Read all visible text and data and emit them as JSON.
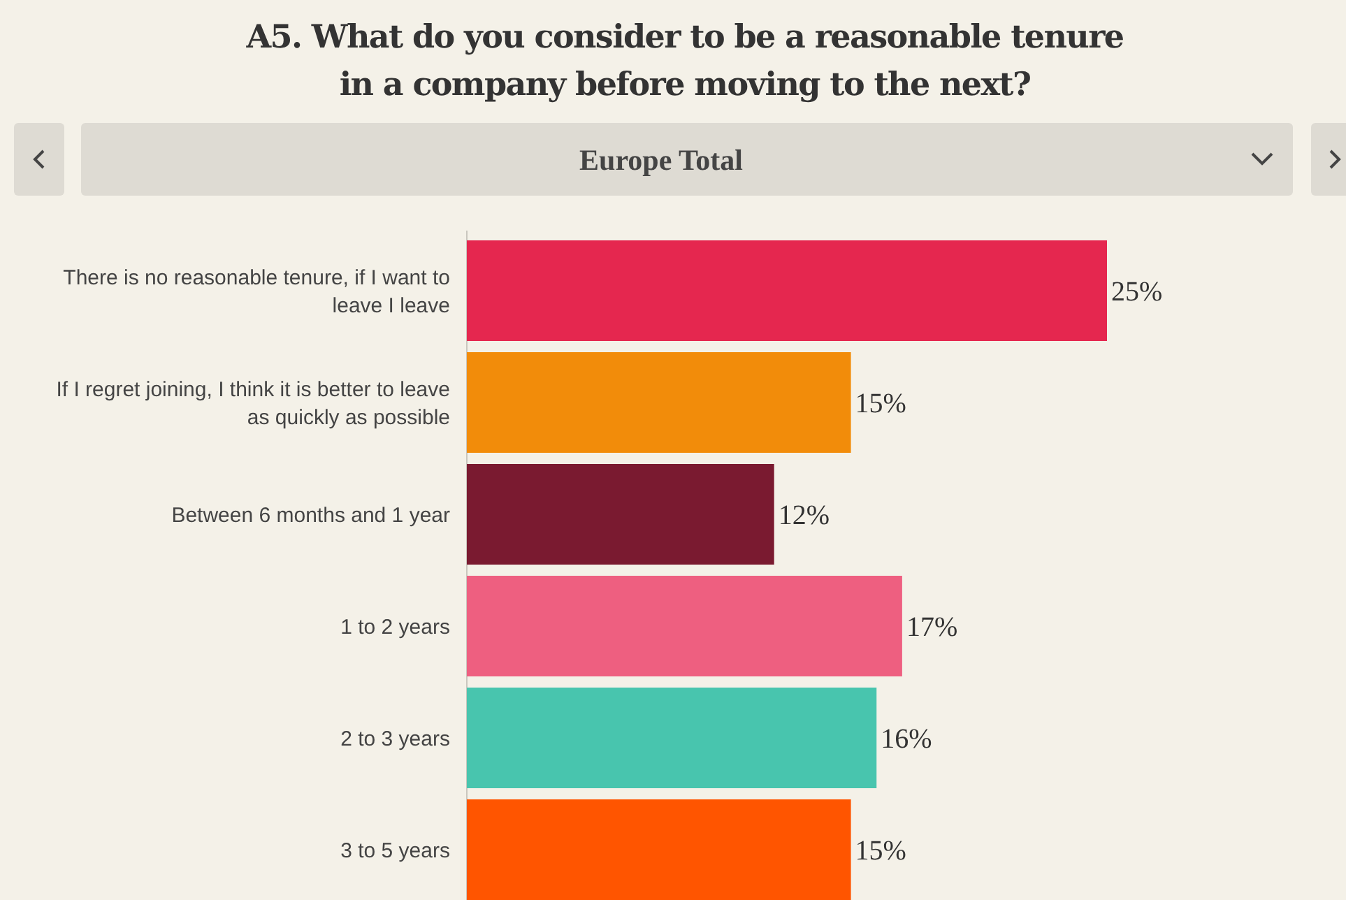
{
  "chart_data": {
    "type": "bar",
    "orientation": "horizontal",
    "title": "A5. What do you consider to be a reasonable tenure in a company before moving to the next?",
    "subtitle": "Europe Total",
    "categories": [
      "There is no reasonable tenure, if I want to leave I leave",
      "If I regret joining, I think it is better to leave as quickly as possible",
      "Between 6 months and 1 year",
      "1 to 2 years",
      "2 to 3 years",
      "3 to 5 years"
    ],
    "values": [
      25,
      15,
      12,
      17,
      16,
      15
    ],
    "colors": [
      "#e5274f",
      "#f28c0a",
      "#7a1a30",
      "#ee5f80",
      "#48c5ae",
      "#ff5500"
    ],
    "value_labels": [
      "25%",
      "15%",
      "12%",
      "17%",
      "16%",
      "15%"
    ]
  }
}
